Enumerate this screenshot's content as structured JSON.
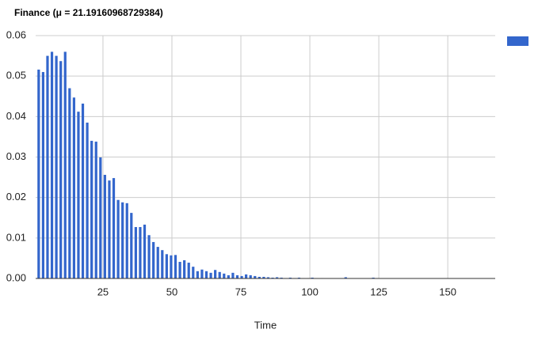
{
  "chart_data": {
    "type": "bar",
    "title": "Finance (μ = 21.19160968729384)",
    "x_label": "Time",
    "color": "#3366cc",
    "grid": true,
    "legend": "top-right",
    "x": [
      1.7,
      3.3,
      4.9,
      6.5,
      8.1,
      9.7,
      11.3,
      12.9,
      14.5,
      16.1,
      17.7,
      19.3,
      20.9,
      22.5,
      24.1,
      25.7,
      27.3,
      28.9,
      30.5,
      32.1,
      33.7,
      35.3,
      36.9,
      38.5,
      40.1,
      41.7,
      43.3,
      44.9,
      46.5,
      48.1,
      49.7,
      51.3,
      52.9,
      54.5,
      56.1,
      57.7,
      59.3,
      60.9,
      62.5,
      64.1,
      65.7,
      67.3,
      68.9,
      70.5,
      72.1,
      73.7,
      75.3,
      76.9,
      78.5,
      80.1,
      81.7,
      83.3,
      84.9,
      86.5,
      88.1,
      89.7,
      91.3,
      92.9,
      94.5,
      96.1,
      97.7,
      99.3,
      100.9,
      104.5,
      113,
      123
    ],
    "values": [
      0.0516,
      0.051,
      0.055,
      0.056,
      0.055,
      0.0537,
      0.056,
      0.047,
      0.0447,
      0.0412,
      0.0432,
      0.0385,
      0.034,
      0.0338,
      0.0299,
      0.0256,
      0.0242,
      0.0248,
      0.0194,
      0.0188,
      0.0186,
      0.0162,
      0.0127,
      0.0127,
      0.0133,
      0.0107,
      0.009,
      0.0078,
      0.007,
      0.006,
      0.0057,
      0.0058,
      0.0041,
      0.0045,
      0.0039,
      0.0029,
      0.0018,
      0.0022,
      0.0018,
      0.0014,
      0.0021,
      0.0016,
      0.0012,
      0.0008,
      0.0014,
      0.0008,
      0.0006,
      0.001,
      0.0008,
      0.0006,
      0.0004,
      0.0004,
      0.0003,
      0.0002,
      0.0003,
      0.0002,
      0.0001,
      0.0002,
      0.0001,
      0.0002,
      0.0001,
      0.0001,
      0.0002,
      0.0001,
      0.0003,
      0.0002
    ],
    "xlim": [
      0.6,
      167.2
    ],
    "xticks": [
      25,
      50,
      75,
      100,
      125,
      150
    ],
    "ylim": [
      0,
      0.06
    ],
    "yticks": [
      {
        "value": 0,
        "label": "0.00"
      },
      {
        "value": 0.01,
        "label": "0.01"
      },
      {
        "value": 0.02,
        "label": "0.02"
      },
      {
        "value": 0.03,
        "label": "0.03"
      },
      {
        "value": 0.04,
        "label": "0.04"
      },
      {
        "value": 0.05,
        "label": "0.05"
      },
      {
        "value": 0.06,
        "label": "0.06"
      }
    ]
  }
}
